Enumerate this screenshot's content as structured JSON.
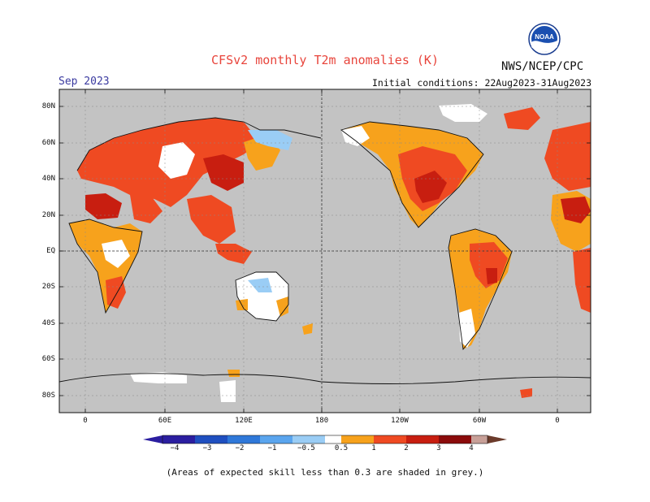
{
  "header": {
    "title": "CFSv2 monthly T2m anomalies (K)",
    "month": "Sep 2023",
    "initial_conditions": "Initial conditions: 22Aug2023-31Aug2023",
    "agency": "NWS/NCEP/CPC",
    "logo_text": "NOAA"
  },
  "axes": {
    "lat_ticks": [
      "80N",
      "60N",
      "40N",
      "20N",
      "EQ",
      "20S",
      "40S",
      "60S",
      "80S"
    ],
    "lon_ticks": [
      "0",
      "60E",
      "120E",
      "180",
      "120W",
      "60W",
      "0"
    ]
  },
  "colorbar": {
    "labels": [
      "−4",
      "−3",
      "−2",
      "−1",
      "−0.5",
      "0.5",
      "1",
      "2",
      "3",
      "4"
    ],
    "colors": [
      "#2b1ea0",
      "#1f4fc0",
      "#2f78d9",
      "#5aa5ee",
      "#9acdf5",
      "#ffffff",
      "#f7a21c",
      "#ef4a22",
      "#c81e10",
      "#8b0b0b",
      "#c8a098",
      "#6b3b2b"
    ]
  },
  "footnote": "(Areas of expected skill less than 0.3 are shaded in grey.)",
  "colors": {
    "grey_no_skill": "#c3c3c3",
    "neutral": "#ffffff",
    "warm_05_1": "#f7a21c",
    "warm_1_2": "#ef4a22",
    "warm_2_3": "#c81e10",
    "cool_05_1": "#9acdf5",
    "cool_1_2": "#5aa5ee"
  }
}
